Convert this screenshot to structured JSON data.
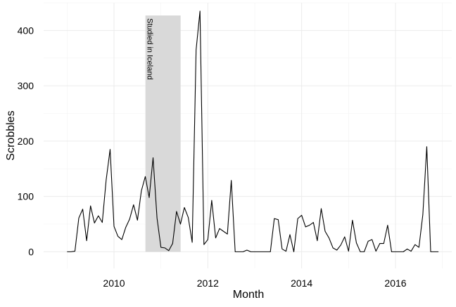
{
  "chart_data": {
    "type": "line",
    "title": "",
    "xlabel": "Month",
    "ylabel": "Scrobbles",
    "x_ticks": [
      {
        "value": 2010,
        "label": "2010"
      },
      {
        "value": 2012,
        "label": "2012"
      },
      {
        "value": 2014,
        "label": "2014"
      },
      {
        "value": 2016,
        "label": "2016"
      }
    ],
    "y_ticks": [
      {
        "value": 0,
        "label": "0"
      },
      {
        "value": 100,
        "label": "100"
      },
      {
        "value": 200,
        "label": "200"
      },
      {
        "value": 300,
        "label": "300"
      },
      {
        "value": 400,
        "label": "400"
      }
    ],
    "xlim": [
      2008.5,
      2017.2
    ],
    "ylim": [
      -30,
      450
    ],
    "grid": true,
    "line_color": "#000000",
    "shade_color": "#d9d9d9",
    "annotation": {
      "label": "Studied in Iceland",
      "x_start": 2010.67,
      "x_end": 2011.42
    },
    "series": [
      {
        "x": [
          2009.0,
          2009.083,
          2009.167,
          2009.25,
          2009.333,
          2009.417,
          2009.5,
          2009.583,
          2009.667,
          2009.75,
          2009.833,
          2009.917,
          2010.0,
          2010.083,
          2010.167,
          2010.25,
          2010.333,
          2010.417,
          2010.5,
          2010.583,
          2010.667,
          2010.75,
          2010.833,
          2010.917,
          2011.0,
          2011.083,
          2011.167,
          2011.25,
          2011.333,
          2011.417,
          2011.5,
          2011.583,
          2011.667,
          2011.75,
          2011.833,
          2011.917,
          2012.0,
          2012.083,
          2012.167,
          2012.25,
          2012.333,
          2012.417,
          2012.5,
          2012.583,
          2012.667,
          2012.75,
          2012.833,
          2012.917,
          2013.0,
          2013.083,
          2013.167,
          2013.25,
          2013.333,
          2013.417,
          2013.5,
          2013.583,
          2013.667,
          2013.75,
          2013.833,
          2013.917,
          2014.0,
          2014.083,
          2014.167,
          2014.25,
          2014.333,
          2014.417,
          2014.5,
          2014.583,
          2014.667,
          2014.75,
          2014.833,
          2014.917,
          2015.0,
          2015.083,
          2015.167,
          2015.25,
          2015.333,
          2015.417,
          2015.5,
          2015.583,
          2015.667,
          2015.75,
          2015.833,
          2015.917,
          2016.0,
          2016.083,
          2016.167,
          2016.25,
          2016.333,
          2016.417,
          2016.5,
          2016.583,
          2016.667,
          2016.75,
          2016.833,
          2016.917
        ],
        "y": [
          0,
          0,
          1,
          61,
          77,
          20,
          83,
          52,
          65,
          53,
          130,
          185,
          46,
          28,
          22,
          44,
          59,
          85,
          57,
          110,
          136,
          98,
          170,
          61,
          8,
          7,
          2,
          15,
          73,
          50,
          80,
          62,
          17,
          365,
          435,
          13,
          22,
          93,
          25,
          42,
          37,
          32,
          129,
          0,
          0,
          0,
          3,
          0,
          0,
          0,
          0,
          0,
          0,
          60,
          58,
          5,
          1,
          31,
          0,
          60,
          66,
          45,
          48,
          53,
          20,
          78,
          37,
          25,
          7,
          3,
          12,
          27,
          1,
          57,
          16,
          0,
          0,
          19,
          22,
          1,
          15,
          15,
          48,
          0,
          0,
          0,
          0,
          5,
          1,
          13,
          8,
          67,
          190,
          0,
          0,
          0
        ]
      }
    ]
  }
}
